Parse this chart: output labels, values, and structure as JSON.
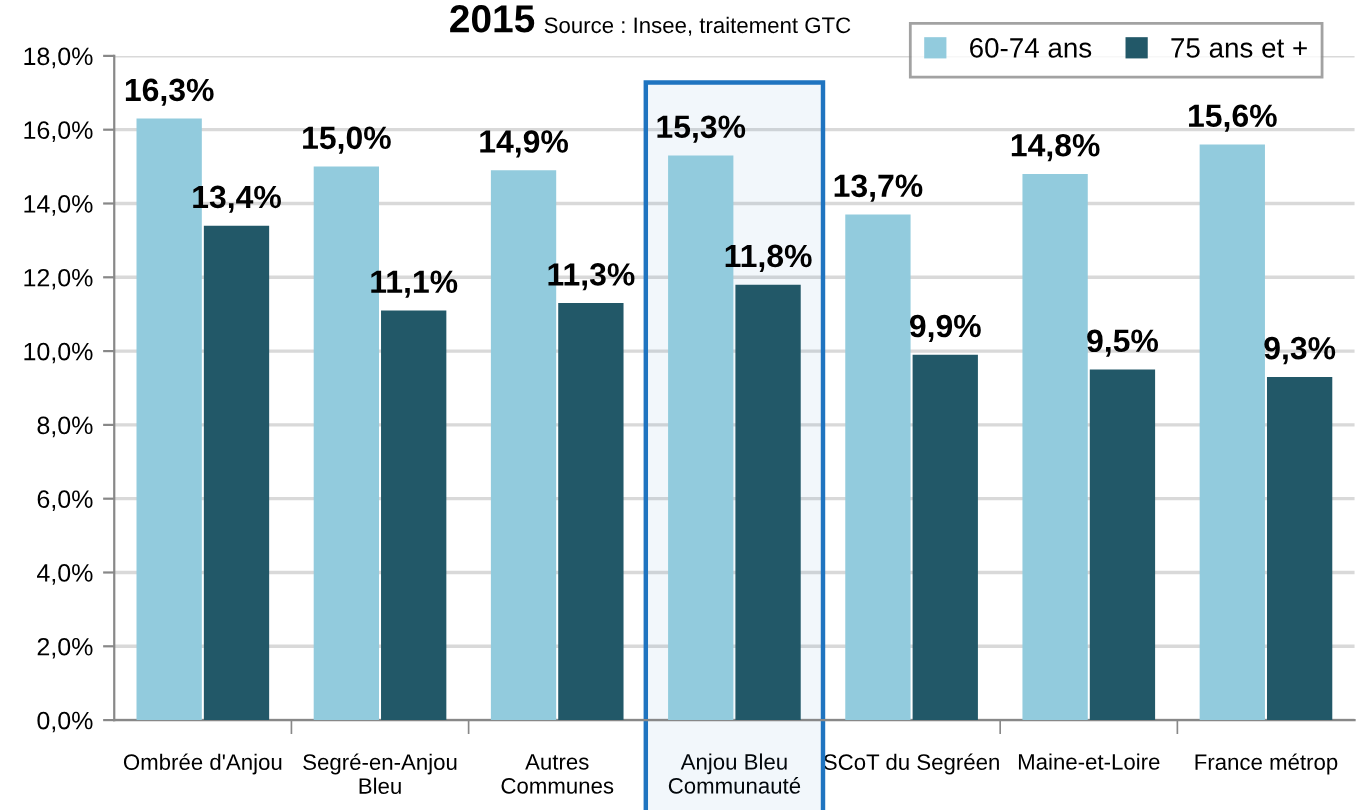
{
  "chart_data": {
    "type": "bar",
    "title": "2015",
    "annotations": [
      "Source : Insee, traitement GTC"
    ],
    "categories": [
      "Ombrée d'Anjou",
      "Segré-en-Anjou\nBleu",
      "Autres\nCommunes",
      "Anjou Bleu\nCommunauté",
      "SCoT du Segréen",
      "Maine-et-Loire",
      "France métrop"
    ],
    "series": [
      {
        "name": "60-74 ans",
        "color": "#92cbdd",
        "values": [
          16.3,
          15.0,
          14.9,
          15.3,
          13.7,
          14.8,
          15.6
        ],
        "value_labels": [
          "16,3%",
          "15,0%",
          "14,9%",
          "15,3%",
          "13,7%",
          "14,8%",
          "15,6%"
        ]
      },
      {
        "name": "75 ans et +",
        "color": "#225868",
        "values": [
          13.4,
          11.1,
          11.3,
          11.8,
          9.9,
          9.5,
          9.3
        ],
        "value_labels": [
          "13,4%",
          "11,1%",
          "11,3%",
          "11,8%",
          "9,9%",
          "9,5%",
          "9,3%"
        ]
      }
    ],
    "ylim": [
      0,
      18
    ],
    "yticks": [
      {
        "value": 0,
        "label": "0,0%"
      },
      {
        "value": 2,
        "label": "2,0%"
      },
      {
        "value": 4,
        "label": "4,0%"
      },
      {
        "value": 6,
        "label": "6,0%"
      },
      {
        "value": 8,
        "label": "8,0%"
      },
      {
        "value": 10,
        "label": "10,0%"
      },
      {
        "value": 12,
        "label": "12,0%"
      },
      {
        "value": 14,
        "label": "14,0%"
      },
      {
        "value": 16,
        "label": "16,0%"
      },
      {
        "value": 18,
        "label": "18,0%"
      }
    ],
    "bands": [
      {
        "axis": "x",
        "from": "Anjou Bleu\nCommunauté",
        "to": "Anjou Bleu\nCommunauté",
        "color": "#1f74c0"
      }
    ],
    "grid": "y",
    "legend": "top right"
  }
}
